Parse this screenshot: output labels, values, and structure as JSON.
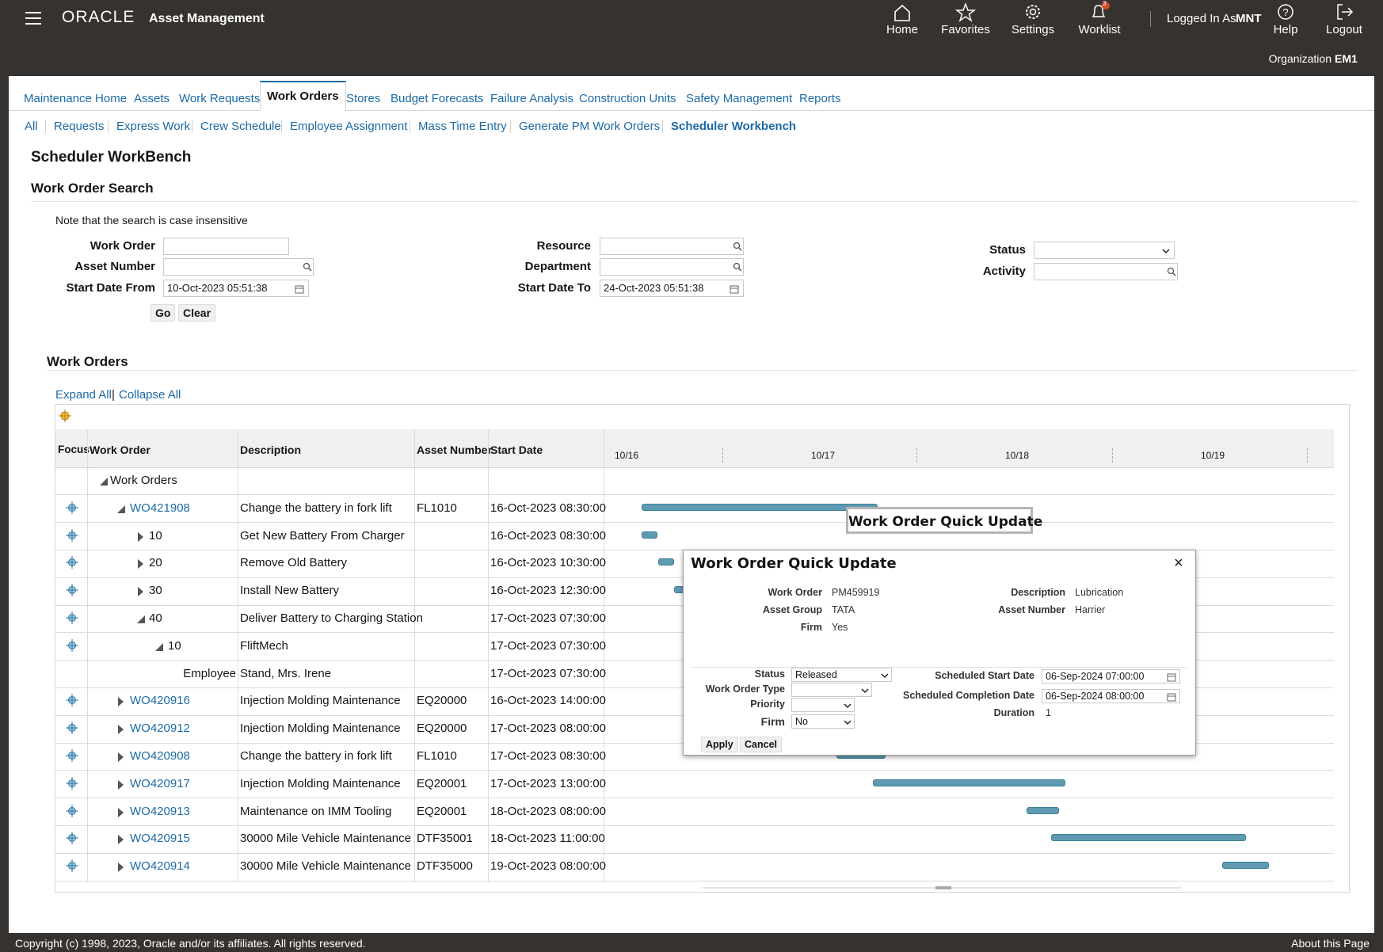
{
  "header": {
    "brand": "ORACLE",
    "app_title": "Asset Management",
    "nav": [
      "Home",
      "Favorites",
      "Settings",
      "Worklist"
    ],
    "worklist_badge": "3",
    "logged_in_label": "Logged In As",
    "user": "MNT",
    "help": "Help",
    "logout": "Logout",
    "organization_label": "Organization",
    "organization": "EM1"
  },
  "tabs": [
    "Maintenance Home",
    "Assets",
    "Work Requests",
    "Work Orders",
    "Stores",
    "Budget Forecasts",
    "Failure Analysis",
    "Construction Units",
    "Safety Management",
    "Reports"
  ],
  "subtabs": [
    "All",
    "Requests",
    "Express Work",
    "Crew Schedule",
    "Employee Assignment",
    "Mass Time Entry",
    "Generate PM Work Orders",
    "Scheduler Workbench"
  ],
  "page_title": "Scheduler WorkBench",
  "search": {
    "title": "Work Order Search",
    "note": "Note that the search is case insensitive",
    "fields": [
      {
        "label": "Work Order"
      },
      {
        "label": "Asset Number"
      },
      {
        "label": "Start Date From",
        "value": "10-Oct-2023 05:51:38"
      },
      {
        "label": "Resource"
      },
      {
        "label": "Department"
      },
      {
        "label": "Start Date To",
        "value": "24-Oct-2023 05:51:38"
      },
      {
        "label": "Status"
      },
      {
        "label": "Activity"
      }
    ],
    "buttons": [
      "Go",
      "Clear"
    ]
  },
  "work_orders": {
    "title": "Work Orders",
    "expand_all": "Expand All",
    "separator": "|",
    "collapse_all": "Collapse All",
    "columns": [
      "Focus",
      "Work Order",
      "Description",
      "Asset Number",
      "Start Date"
    ],
    "timeline": [
      "10/16",
      "10/17",
      "10/18",
      "10/19"
    ],
    "rows": [
      {
        "work_order": "Work Orders"
      },
      {
        "work_order": "WO421908",
        "description": "Change the battery in fork lift",
        "asset_number": "FL1010",
        "start_date": "16-Oct-2023 08:30:00"
      },
      {
        "work_order": "10",
        "description": "Get New Battery From Charger",
        "start_date": "16-Oct-2023 08:30:00"
      },
      {
        "work_order": "20",
        "description": "Remove Old Battery",
        "start_date": "16-Oct-2023 10:30:00"
      },
      {
        "work_order": "30",
        "description": "Install New Battery",
        "start_date": "16-Oct-2023 12:30:00"
      },
      {
        "work_order": "40",
        "description": "Deliver Battery to Charging Station",
        "start_date": "17-Oct-2023 07:30:00"
      },
      {
        "work_order": "10",
        "description": "FliftMech",
        "start_date": "17-Oct-2023 07:30:00"
      },
      {
        "work_order": "Employee",
        "description": "Stand, Mrs. Irene",
        "start_date": "17-Oct-2023 07:30:00"
      },
      {
        "work_order": "WO420916",
        "description": "Injection Molding Maintenance",
        "asset_number": "EQ20000",
        "start_date": "16-Oct-2023 14:00:00"
      },
      {
        "work_order": "WO420912",
        "description": "Injection Molding Maintenance",
        "asset_number": "EQ20000",
        "start_date": "17-Oct-2023 08:00:00"
      },
      {
        "work_order": "WO420908",
        "description": "Change the battery in fork lift",
        "asset_number": "FL1010",
        "start_date": "17-Oct-2023 08:30:00"
      },
      {
        "work_order": "WO420917",
        "description": "Injection Molding Maintenance",
        "asset_number": "EQ20001",
        "start_date": "17-Oct-2023 13:00:00"
      },
      {
        "work_order": "WO420913",
        "description": "Maintenance on IMM Tooling",
        "asset_number": "EQ20001",
        "start_date": "18-Oct-2023 08:00:00"
      },
      {
        "work_order": "WO420915",
        "description": "30000 Mile Vehicle Maintenance",
        "asset_number": "DTF35001",
        "start_date": "18-Oct-2023 11:00:00"
      },
      {
        "work_order": "WO420914",
        "description": "30000 Mile Vehicle Maintenance",
        "asset_number": "DTF35000",
        "start_date": "19-Oct-2023 08:00:00"
      }
    ]
  },
  "tooltip": "Work Order Quick Update",
  "dialog": {
    "title": "Work Order Quick Update",
    "close": "×",
    "info": [
      {
        "label": "Work Order",
        "value": "PM459919"
      },
      {
        "label": "Asset Group",
        "value": "TATA"
      },
      {
        "label": "Firm",
        "value": "Yes"
      },
      {
        "label": "Description",
        "value": "Lubrication"
      },
      {
        "label": "Asset Number",
        "value": "Harrier"
      }
    ],
    "fields": [
      {
        "label": "Status",
        "value": "Released"
      },
      {
        "label": "Work Order Type"
      },
      {
        "label": "Priority"
      },
      {
        "label": "Firm",
        "value": "No"
      },
      {
        "label": "Scheduled Start Date",
        "value": "06-Sep-2024 07:00:00"
      },
      {
        "label": "Scheduled Completion Date",
        "value": "06-Sep-2024 08:00:00"
      },
      {
        "label": "Duration",
        "value": "1"
      }
    ],
    "buttons": [
      "Apply",
      "Cancel"
    ]
  },
  "footer": {
    "copyright": "Copyright (c) 1998, 2023, Oracle and/or its affiliates. All rights reserved.",
    "about": "About this Page"
  }
}
